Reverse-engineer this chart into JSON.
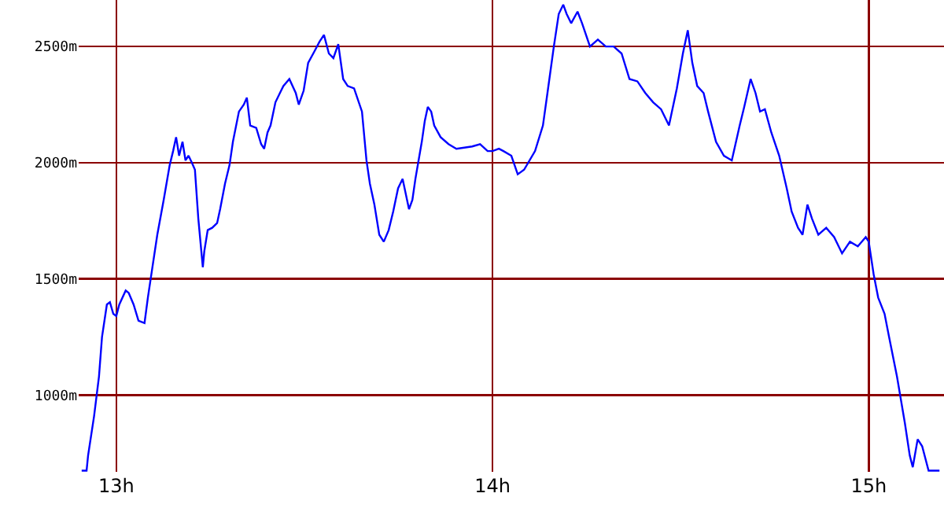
{
  "chart_data": {
    "type": "line",
    "x": [
      12.908,
      12.921,
      12.925,
      12.941,
      12.954,
      12.962,
      12.975,
      12.983,
      12.992,
      13.0,
      13.008,
      13.025,
      13.033,
      13.046,
      13.059,
      13.075,
      13.084,
      13.096,
      13.109,
      13.126,
      13.142,
      13.151,
      13.159,
      13.167,
      13.176,
      13.184,
      13.192,
      13.201,
      13.209,
      13.218,
      13.23,
      13.234,
      13.243,
      13.255,
      13.268,
      13.276,
      13.289,
      13.301,
      13.31,
      13.326,
      13.339,
      13.347,
      13.356,
      13.372,
      13.385,
      13.393,
      13.402,
      13.41,
      13.423,
      13.435,
      13.444,
      13.46,
      13.477,
      13.485,
      13.498,
      13.51,
      13.527,
      13.54,
      13.552,
      13.565,
      13.577,
      13.59,
      13.603,
      13.615,
      13.632,
      13.653,
      13.665,
      13.674,
      13.686,
      13.699,
      13.711,
      13.724,
      13.736,
      13.749,
      13.761,
      13.778,
      13.787,
      13.795,
      13.812,
      13.82,
      13.828,
      13.837,
      13.845,
      13.862,
      13.883,
      13.904,
      13.946,
      13.967,
      13.987,
      14.0,
      14.017,
      14.029,
      14.05,
      14.067,
      14.084,
      14.113,
      14.134,
      14.146,
      14.163,
      14.176,
      14.188,
      14.197,
      14.209,
      14.226,
      14.238,
      14.259,
      14.28,
      14.301,
      14.322,
      14.343,
      14.364,
      14.385,
      14.406,
      14.427,
      14.448,
      14.469,
      14.49,
      14.506,
      14.519,
      14.531,
      14.544,
      14.561,
      14.573,
      14.594,
      14.615,
      14.636,
      14.657,
      14.669,
      14.686,
      14.699,
      14.711,
      14.724,
      14.741,
      14.762,
      14.782,
      14.795,
      14.812,
      14.824,
      14.837,
      14.849,
      14.866,
      14.887,
      14.908,
      14.929,
      14.95,
      14.971,
      14.992,
      15.0,
      15.013,
      15.025,
      15.042,
      15.054,
      15.075,
      15.096,
      15.109,
      15.117,
      15.13,
      15.142,
      15.159,
      15.188
    ],
    "series": [
      {
        "color": "#0000ff",
        "values": [
          675,
          675,
          740,
          910,
          1080,
          1250,
          1390,
          1400,
          1350,
          1340,
          1390,
          1450,
          1440,
          1390,
          1320,
          1310,
          1420,
          1550,
          1690,
          1840,
          1990,
          2050,
          2110,
          2030,
          2090,
          2010,
          2030,
          2000,
          1970,
          1760,
          1550,
          1620,
          1710,
          1720,
          1740,
          1800,
          1910,
          1990,
          2090,
          2220,
          2250,
          2280,
          2160,
          2150,
          2080,
          2060,
          2130,
          2160,
          2260,
          2300,
          2330,
          2360,
          2300,
          2250,
          2310,
          2430,
          2480,
          2520,
          2550,
          2470,
          2450,
          2510,
          2360,
          2330,
          2320,
          2220,
          2010,
          1910,
          1820,
          1690,
          1660,
          1710,
          1790,
          1890,
          1930,
          1800,
          1840,
          1930,
          2090,
          2180,
          2240,
          2220,
          2160,
          2110,
          2080,
          2060,
          2070,
          2080,
          2050,
          2050,
          2060,
          2050,
          2030,
          1950,
          1970,
          2050,
          2160,
          2300,
          2500,
          2640,
          2680,
          2640,
          2600,
          2650,
          2600,
          2500,
          2530,
          2500,
          2500,
          2470,
          2360,
          2350,
          2300,
          2260,
          2230,
          2160,
          2320,
          2470,
          2570,
          2430,
          2330,
          2300,
          2220,
          2090,
          2030,
          2010,
          2160,
          2240,
          2360,
          2300,
          2220,
          2230,
          2130,
          2030,
          1890,
          1790,
          1720,
          1690,
          1820,
          1760,
          1690,
          1720,
          1680,
          1610,
          1660,
          1640,
          1680,
          1660,
          1520,
          1420,
          1350,
          1250,
          1080,
          880,
          740,
          690,
          810,
          780,
          675,
          675
        ]
      }
    ],
    "xlim": [
      12.9,
      15.2
    ],
    "xticks": [
      {
        "value": 13,
        "label": "13h"
      },
      {
        "value": 14,
        "label": "14h"
      },
      {
        "value": 15,
        "label": "15h"
      }
    ],
    "ylim": [
      670,
      2700
    ],
    "yticks": [
      {
        "value": 1000,
        "label": "1000m"
      },
      {
        "value": 1500,
        "label": "1500m"
      },
      {
        "value": 2000,
        "label": "2000m"
      },
      {
        "value": 2500,
        "label": "2500m"
      }
    ],
    "grid": true,
    "marker": "none",
    "line_style": "solid"
  }
}
